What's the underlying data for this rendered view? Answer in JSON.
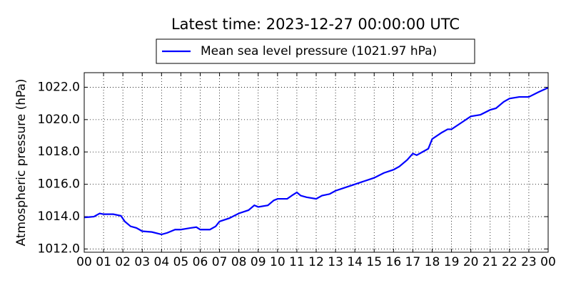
{
  "chart_data": {
    "type": "line",
    "title": "Latest time: 2023-12-27 00:00:00 UTC",
    "y_label": "Atmospheric pressure (hPa)",
    "grid": true,
    "legend": "upper center",
    "x": [
      0,
      0.5,
      0.8,
      1,
      1.5,
      1.9,
      2.1,
      2.4,
      2.7,
      3,
      3.5,
      4,
      4.3,
      4.7,
      5,
      5.5,
      5.8,
      6,
      6.5,
      6.8,
      7,
      7.5,
      8,
      8.5,
      8.8,
      9,
      9.5,
      9.8,
      10,
      10.5,
      10.8,
      11,
      11.2,
      11.5,
      12,
      12.3,
      12.7,
      13,
      13.5,
      14,
      14.5,
      15,
      15.5,
      16,
      16.3,
      16.7,
      17,
      17.2,
      17.5,
      17.8,
      18,
      18.5,
      18.8,
      19,
      19.5,
      20,
      20.5,
      21,
      21.3,
      21.7,
      22,
      22.5,
      23,
      23.5,
      24
    ],
    "series": [
      {
        "name": "Mean sea level pressure (1021.97 hPa)",
        "color": "#0000ff",
        "values": [
          1013.95,
          1014.0,
          1014.2,
          1014.15,
          1014.15,
          1014.05,
          1013.7,
          1013.4,
          1013.3,
          1013.1,
          1013.05,
          1012.9,
          1013.0,
          1013.2,
          1013.2,
          1013.3,
          1013.35,
          1013.2,
          1013.2,
          1013.4,
          1013.7,
          1013.9,
          1014.2,
          1014.4,
          1014.7,
          1014.6,
          1014.7,
          1015.0,
          1015.1,
          1015.1,
          1015.35,
          1015.5,
          1015.3,
          1015.2,
          1015.1,
          1015.3,
          1015.4,
          1015.6,
          1015.8,
          1016.0,
          1016.2,
          1016.4,
          1016.7,
          1016.9,
          1017.1,
          1017.5,
          1017.9,
          1017.8,
          1018.0,
          1018.2,
          1018.8,
          1019.2,
          1019.4,
          1019.4,
          1019.8,
          1020.2,
          1020.3,
          1020.6,
          1020.7,
          1021.1,
          1021.3,
          1021.4,
          1021.4,
          1021.7,
          1021.97
        ]
      }
    ],
    "xlim": [
      0,
      24
    ],
    "xticks": [
      {
        "value": 0,
        "label": "00"
      },
      {
        "value": 1,
        "label": "01"
      },
      {
        "value": 2,
        "label": "02"
      },
      {
        "value": 3,
        "label": "03"
      },
      {
        "value": 4,
        "label": "04"
      },
      {
        "value": 5,
        "label": "05"
      },
      {
        "value": 6,
        "label": "06"
      },
      {
        "value": 7,
        "label": "07"
      },
      {
        "value": 8,
        "label": "08"
      },
      {
        "value": 9,
        "label": "09"
      },
      {
        "value": 10,
        "label": "10"
      },
      {
        "value": 11,
        "label": "11"
      },
      {
        "value": 12,
        "label": "12"
      },
      {
        "value": 13,
        "label": "13"
      },
      {
        "value": 14,
        "label": "14"
      },
      {
        "value": 15,
        "label": "15"
      },
      {
        "value": 16,
        "label": "16"
      },
      {
        "value": 17,
        "label": "17"
      },
      {
        "value": 18,
        "label": "18"
      },
      {
        "value": 19,
        "label": "19"
      },
      {
        "value": 20,
        "label": "20"
      },
      {
        "value": 21,
        "label": "21"
      },
      {
        "value": 22,
        "label": "22"
      },
      {
        "value": 23,
        "label": "23"
      },
      {
        "value": 24,
        "label": "00"
      }
    ],
    "ylim": [
      1011.8,
      1022.9
    ],
    "yticks": [
      {
        "value": 1012,
        "label": "1012.0"
      },
      {
        "value": 1014,
        "label": "1014.0"
      },
      {
        "value": 1016,
        "label": "1016.0"
      },
      {
        "value": 1018,
        "label": "1018.0"
      },
      {
        "value": 1020,
        "label": "1020.0"
      },
      {
        "value": 1022,
        "label": "1022.0"
      }
    ]
  }
}
